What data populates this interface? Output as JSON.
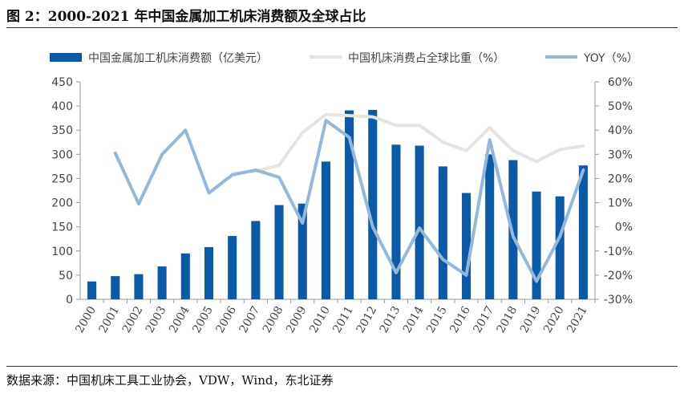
{
  "figure": {
    "title": "图 2：2000-2021 年中国金属加工机床消费额及全球占比",
    "source": "数据来源：中国机床工具工业协会，VDW，Wind，东北证券"
  },
  "colors": {
    "bar": "#0b5aa8",
    "share_line": "#e6e4df",
    "yoy_line": "#94b8dc",
    "axis": "#9a9a9a"
  },
  "chart_data": {
    "type": "bar",
    "categories": [
      "2000",
      "2001",
      "2002",
      "2003",
      "2004",
      "2005",
      "2006",
      "2007",
      "2008",
      "2009",
      "2010",
      "2011",
      "2012",
      "2013",
      "2014",
      "2015",
      "2016",
      "2017",
      "2018",
      "2019",
      "2020",
      "2021"
    ],
    "series": [
      {
        "name": "中国金属加工机床消费额（亿美元）",
        "type": "bar",
        "axis": "left",
        "values": [
          37,
          48,
          52,
          68,
          95,
          108,
          131,
          162,
          195,
          198,
          285,
          391,
          392,
          320,
          318,
          275,
          220,
          300,
          288,
          223,
          213,
          277
        ]
      },
      {
        "name": "中国机床消费占全球比重（%）",
        "type": "line",
        "axis": "right",
        "values": [
          null,
          null,
          null,
          null,
          null,
          null,
          22,
          23,
          25.5,
          39,
          46.5,
          46,
          45.5,
          42,
          42,
          35,
          31.5,
          41,
          31.5,
          27,
          32,
          33.5
        ]
      },
      {
        "name": "YOY（%）",
        "type": "line",
        "axis": "right",
        "values": [
          null,
          30.5,
          9.5,
          30,
          40,
          14,
          21.5,
          23.5,
          20.5,
          1.5,
          44,
          37,
          0,
          -19,
          -0.5,
          -13.5,
          -20,
          36,
          -4,
          -22.5,
          -4,
          23.5
        ]
      }
    ],
    "y_left": {
      "ylim": [
        0,
        450
      ],
      "ticks": [
        "0",
        "50",
        "100",
        "150",
        "200",
        "250",
        "300",
        "350",
        "400",
        "450"
      ]
    },
    "y_right": {
      "ylim": [
        -30,
        60
      ],
      "ticks": [
        "-30%",
        "-20%",
        "-10%",
        "0%",
        "10%",
        "20%",
        "30%",
        "40%",
        "50%",
        "60%"
      ]
    },
    "legend_placement": "top",
    "grid": false
  }
}
